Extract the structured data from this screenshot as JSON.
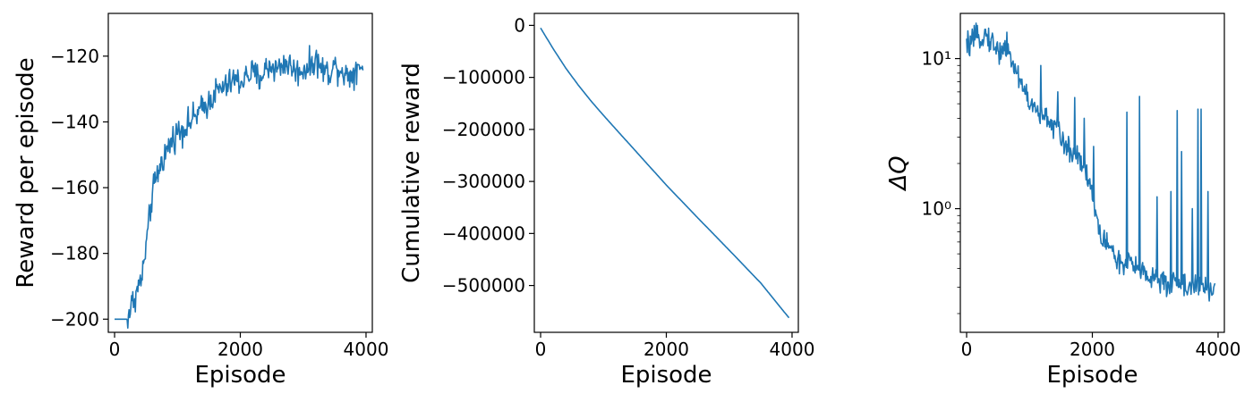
{
  "chart_data": [
    {
      "type": "line",
      "xlabel": "Episode",
      "ylabel": "Reward per episode",
      "xlim": [
        -100,
        4100
      ],
      "ylim": [
        -204,
        -107
      ],
      "xticks": [
        0,
        2000,
        4000
      ],
      "xtick_labels": [
        "0",
        "2000",
        "4000"
      ],
      "yticks": [
        -200,
        -180,
        -160,
        -140,
        -120
      ],
      "ytick_labels": [
        "−200",
        "−180",
        "−160",
        "−140",
        "−120"
      ],
      "color": "#1f77b4",
      "anchors": {
        "x": [
          0,
          200,
          250,
          300,
          350,
          400,
          450,
          500,
          550,
          600,
          650,
          700,
          750,
          800,
          900,
          1000,
          1100,
          1200,
          1300,
          1400,
          1500,
          1600,
          1700,
          1800,
          1900,
          2000,
          2100,
          2200,
          2300,
          2400,
          2500,
          2600,
          2700,
          2800,
          2900,
          3000,
          3100,
          3200,
          3300,
          3400,
          3500,
          3600,
          3700,
          3800,
          3900,
          3950
        ],
        "y": [
          -200,
          -200,
          -197,
          -194,
          -192,
          -189,
          -186,
          -178,
          -170,
          -162,
          -158,
          -155,
          -152,
          -150,
          -146,
          -143,
          -142,
          -140,
          -138,
          -136,
          -134,
          -131,
          -130,
          -129,
          -127,
          -128,
          -126,
          -125,
          -127,
          -124,
          -123,
          -124,
          -122,
          -123,
          -125,
          -124,
          -123,
          -121,
          -124,
          -125,
          -123,
          -124,
          -126,
          -125,
          -122,
          -124
        ]
      },
      "noise": 4
    },
    {
      "type": "line",
      "xlabel": "Episode",
      "ylabel": "Cumulative reward",
      "xlim": [
        -100,
        4100
      ],
      "ylim": [
        -590000,
        23000
      ],
      "xticks": [
        0,
        2000,
        4000
      ],
      "xtick_labels": [
        "0",
        "2000",
        "4000"
      ],
      "yticks": [
        0,
        -100000,
        -200000,
        -300000,
        -400000,
        -500000
      ],
      "ytick_labels": [
        "0",
        "−100000",
        "−200000",
        "−300000",
        "−400000",
        "−500000"
      ],
      "color": "#1f77b4",
      "anchors": {
        "x": [
          0,
          200,
          400,
          600,
          800,
          1000,
          1500,
          2000,
          2500,
          3000,
          3500,
          3950
        ],
        "y": [
          -5000,
          -45000,
          -82000,
          -115000,
          -145000,
          -173000,
          -240000,
          -307000,
          -370000,
          -432000,
          -495000,
          -562000
        ]
      },
      "noise": 0
    },
    {
      "type": "line",
      "scale": "log",
      "xlabel": "Episode",
      "ylabel": "ΔQ",
      "xlim": [
        -100,
        4100
      ],
      "ylim": [
        0.15,
        20
      ],
      "xticks": [
        0,
        2000,
        4000
      ],
      "xtick_labels": [
        "0",
        "2000",
        "4000"
      ],
      "yticks": [
        1,
        10
      ],
      "ytick_labels": [
        "10⁰",
        "10¹"
      ],
      "color": "#1f77b4",
      "anchors": {
        "x": [
          0,
          100,
          200,
          300,
          400,
          500,
          600,
          700,
          800,
          900,
          1000,
          1100,
          1200,
          1300,
          1400,
          1500,
          1600,
          1700,
          1800,
          1900,
          2000,
          2100,
          2200,
          2300,
          2400,
          2500,
          2600,
          2700,
          2800,
          2900,
          3000,
          3100,
          3200,
          3300,
          3400,
          3500,
          3600,
          3700,
          3800,
          3900,
          3950
        ],
        "y": [
          12,
          13,
          14,
          14.5,
          13,
          11,
          12,
          10,
          8,
          6.5,
          5,
          4.5,
          4,
          4,
          3.5,
          3,
          2.5,
          2.4,
          2.2,
          1.8,
          1.2,
          0.7,
          0.6,
          0.55,
          0.45,
          0.4,
          0.45,
          0.38,
          0.4,
          0.35,
          0.35,
          0.32,
          0.3,
          0.34,
          0.32,
          0.3,
          0.31,
          0.3,
          0.29,
          0.28,
          0.3
        ]
      },
      "noise": 0.12,
      "spikes": [
        {
          "x": 640,
          "y": 15
        },
        {
          "x": 1180,
          "y": 9
        },
        {
          "x": 1450,
          "y": 6
        },
        {
          "x": 1720,
          "y": 5.5
        },
        {
          "x": 1870,
          "y": 4
        },
        {
          "x": 2020,
          "y": 2.6
        },
        {
          "x": 2550,
          "y": 4.4
        },
        {
          "x": 2750,
          "y": 5.6
        },
        {
          "x": 3030,
          "y": 1.2
        },
        {
          "x": 3250,
          "y": 1.3
        },
        {
          "x": 3350,
          "y": 4.5
        },
        {
          "x": 3420,
          "y": 2.4
        },
        {
          "x": 3590,
          "y": 1.0
        },
        {
          "x": 3680,
          "y": 4.6
        },
        {
          "x": 3730,
          "y": 4.6
        },
        {
          "x": 3840,
          "y": 1.3
        }
      ]
    }
  ]
}
